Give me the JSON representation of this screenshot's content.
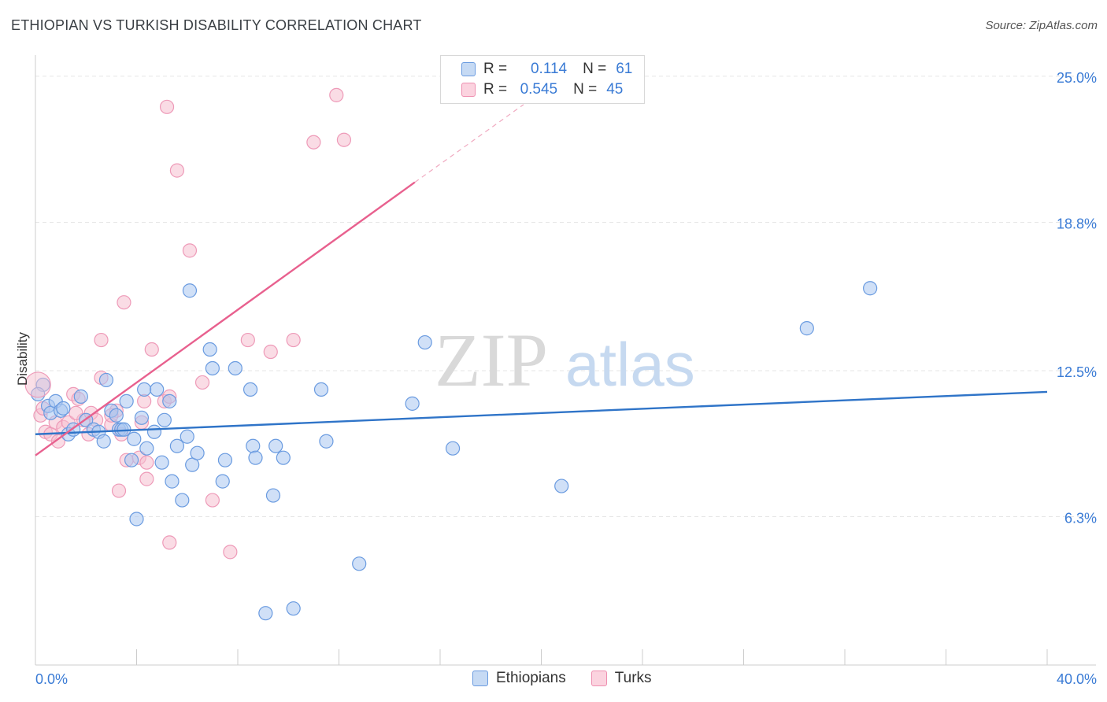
{
  "title": "ETHIOPIAN VS TURKISH DISABILITY CORRELATION CHART",
  "source": "Source: ZipAtlas.com",
  "watermark": {
    "zip": "ZIP",
    "atlas": "atlas"
  },
  "legend": {
    "r_label": "R =",
    "n_label": "N =",
    "rows": [
      {
        "name": "Ethiopians",
        "r": "0.114",
        "n": "61"
      },
      {
        "name": "Turks",
        "r": "0.545",
        "n": "45"
      }
    ]
  },
  "colors": {
    "ethiopians_fill": "#a9c7f0",
    "ethiopians_line": "#2f74c8",
    "turks_fill": "#f6bfd0",
    "turks_line": "#e8608e",
    "grid": "#e6e6e6",
    "tick_text": "#3a7bd5"
  },
  "chart_data": {
    "type": "scatter",
    "title": "ETHIOPIAN VS TURKISH DISABILITY CORRELATION CHART",
    "xlabel": "",
    "ylabel": "Disability",
    "xlim": [
      0,
      40
    ],
    "ylim": [
      0,
      25.9
    ],
    "x_tick_labels": [
      "0.0%",
      "40.0%"
    ],
    "y_ticks": [
      6.3,
      12.5,
      18.8,
      25.0
    ],
    "y_tick_labels": [
      "6.3%",
      "12.5%",
      "18.8%",
      "25.0%"
    ],
    "grid": "horizontal dashed",
    "legend_position": "top-center",
    "series": [
      {
        "name": "Ethiopians",
        "points": [
          [
            0.3,
            11.9
          ],
          [
            0.5,
            11.0
          ],
          [
            0.6,
            10.7
          ],
          [
            0.8,
            11.2
          ],
          [
            1.0,
            10.8
          ],
          [
            1.1,
            10.9
          ],
          [
            1.3,
            9.8
          ],
          [
            1.5,
            10.0
          ],
          [
            1.8,
            11.4
          ],
          [
            2.0,
            10.4
          ],
          [
            2.3,
            10.0
          ],
          [
            2.5,
            9.9
          ],
          [
            2.7,
            9.5
          ],
          [
            2.8,
            12.1
          ],
          [
            3.0,
            10.8
          ],
          [
            3.2,
            10.6
          ],
          [
            3.3,
            10.0
          ],
          [
            3.4,
            10.0
          ],
          [
            3.5,
            10.0
          ],
          [
            3.6,
            11.2
          ],
          [
            3.8,
            8.7
          ],
          [
            3.9,
            9.6
          ],
          [
            4.0,
            6.2
          ],
          [
            4.2,
            10.5
          ],
          [
            4.3,
            11.7
          ],
          [
            4.4,
            9.2
          ],
          [
            4.7,
            9.9
          ],
          [
            4.8,
            11.7
          ],
          [
            5.0,
            8.6
          ],
          [
            5.1,
            10.4
          ],
          [
            5.3,
            11.2
          ],
          [
            5.4,
            7.8
          ],
          [
            5.6,
            9.3
          ],
          [
            5.8,
            7.0
          ],
          [
            6.0,
            9.7
          ],
          [
            6.1,
            15.9
          ],
          [
            6.2,
            8.5
          ],
          [
            6.4,
            9.0
          ],
          [
            6.9,
            13.4
          ],
          [
            7.0,
            12.6
          ],
          [
            7.4,
            7.8
          ],
          [
            7.5,
            8.7
          ],
          [
            7.9,
            12.6
          ],
          [
            8.5,
            11.7
          ],
          [
            8.6,
            9.3
          ],
          [
            8.7,
            8.8
          ],
          [
            9.1,
            2.2
          ],
          [
            9.4,
            7.2
          ],
          [
            9.5,
            9.3
          ],
          [
            9.8,
            8.8
          ],
          [
            10.2,
            2.4
          ],
          [
            11.3,
            11.7
          ],
          [
            11.5,
            9.5
          ],
          [
            12.8,
            4.3
          ],
          [
            14.9,
            11.1
          ],
          [
            15.4,
            13.7
          ],
          [
            16.5,
            9.2
          ],
          [
            20.8,
            7.6
          ],
          [
            30.5,
            14.3
          ],
          [
            33.0,
            16.0
          ],
          [
            0.1,
            11.5
          ]
        ],
        "trend": {
          "x": [
            0,
            40
          ],
          "y": [
            9.8,
            11.6
          ]
        }
      },
      {
        "name": "Turks",
        "points": [
          [
            0.2,
            10.6
          ],
          [
            0.4,
            9.9
          ],
          [
            0.6,
            9.8
          ],
          [
            0.8,
            10.3
          ],
          [
            0.9,
            9.5
          ],
          [
            1.1,
            10.1
          ],
          [
            1.3,
            10.3
          ],
          [
            1.5,
            11.5
          ],
          [
            1.7,
            11.3
          ],
          [
            1.9,
            10.4
          ],
          [
            2.1,
            9.8
          ],
          [
            2.2,
            10.7
          ],
          [
            2.4,
            10.4
          ],
          [
            2.6,
            12.2
          ],
          [
            2.6,
            13.8
          ],
          [
            3.0,
            10.2
          ],
          [
            3.2,
            10.8
          ],
          [
            3.3,
            7.4
          ],
          [
            3.4,
            9.8
          ],
          [
            3.5,
            15.4
          ],
          [
            3.6,
            8.7
          ],
          [
            4.1,
            8.8
          ],
          [
            4.2,
            10.3
          ],
          [
            4.3,
            11.2
          ],
          [
            4.4,
            7.9
          ],
          [
            4.4,
            8.6
          ],
          [
            4.6,
            13.4
          ],
          [
            5.1,
            11.2
          ],
          [
            5.2,
            23.7
          ],
          [
            5.3,
            11.4
          ],
          [
            5.3,
            5.2
          ],
          [
            5.6,
            21.0
          ],
          [
            6.1,
            17.6
          ],
          [
            6.6,
            12.0
          ],
          [
            7.0,
            7.0
          ],
          [
            7.7,
            4.8
          ],
          [
            8.4,
            13.8
          ],
          [
            9.3,
            13.3
          ],
          [
            10.2,
            13.8
          ],
          [
            11.0,
            22.2
          ],
          [
            11.9,
            24.2
          ],
          [
            12.2,
            22.3
          ],
          [
            0.3,
            10.9
          ],
          [
            1.6,
            10.7
          ],
          [
            3.0,
            10.6
          ]
        ],
        "trend": {
          "x": [
            0,
            15
          ],
          "y": [
            8.9,
            20.5
          ]
        },
        "trend_extension": {
          "x": [
            15,
            19.3
          ],
          "y": [
            20.5,
            23.8
          ]
        }
      }
    ]
  }
}
